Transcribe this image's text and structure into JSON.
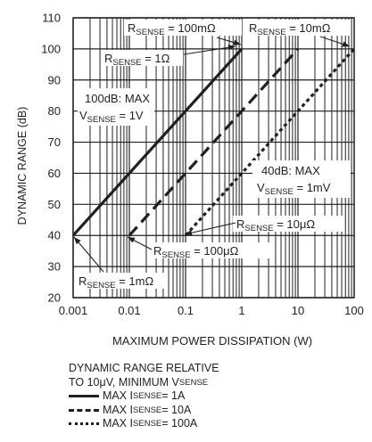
{
  "chart_data": {
    "type": "line",
    "title": "",
    "xlabel": "MAXIMUM POWER DISSIPATION (W)",
    "ylabel": "DYNAMIC RANGE (dB)",
    "xscale": "log",
    "xlim": [
      0.001,
      100
    ],
    "ylim": [
      20,
      110
    ],
    "xticks": [
      "0.001",
      "0.01",
      "0.1",
      "1",
      "10",
      "100"
    ],
    "yticks": [
      "20",
      "30",
      "40",
      "50",
      "60",
      "70",
      "80",
      "90",
      "100",
      "110"
    ],
    "grid": true,
    "series": [
      {
        "name": "MAX ISENSE = 1A",
        "style": "solid",
        "x": [
          0.001,
          1
        ],
        "y": [
          40,
          100
        ]
      },
      {
        "name": "MAX ISENSE = 10A",
        "style": "dash",
        "x": [
          0.01,
          10
        ],
        "y": [
          40,
          100
        ]
      },
      {
        "name": "MAX ISENSE = 100A",
        "style": "dot",
        "x": [
          0.1,
          100
        ],
        "y": [
          40,
          100
        ]
      }
    ],
    "annotations": [
      {
        "id": "r1m",
        "base": "R",
        "sub": "SENSE",
        "rest": " = 1mΩ"
      },
      {
        "id": "r100u",
        "base": "R",
        "sub": "SENSE",
        "rest": " = 100μΩ"
      },
      {
        "id": "r10u",
        "base": "R",
        "sub": "SENSE",
        "rest": " = 10μΩ"
      },
      {
        "id": "r1",
        "base": "R",
        "sub": "SENSE",
        "rest": " = 1Ω"
      },
      {
        "id": "r100m",
        "base": "R",
        "sub": "SENSE",
        "rest": " = 100mΩ"
      },
      {
        "id": "r10m",
        "base": "R",
        "sub": "SENSE",
        "rest": " = 10mΩ"
      },
      {
        "id": "max100",
        "line1": "100dB: MAX",
        "line2_base": "V",
        "line2_sub": "SENSE",
        "line2_rest": " = 1V"
      },
      {
        "id": "max40",
        "line1": "40dB: MAX",
        "line2_base": "V",
        "line2_sub": "SENSE",
        "line2_rest": " = 1mV"
      }
    ]
  },
  "legend": {
    "title_line1": "DYNAMIC RANGE RELATIVE",
    "title_line2_prefix": "TO 10μV, MINIMUM V",
    "title_line2_sub": "SENSE",
    "items": [
      {
        "prefix": "MAX I",
        "sub": "SENSE",
        "suffix": " = 1A"
      },
      {
        "prefix": "MAX I",
        "sub": "SENSE",
        "suffix": " = 10A"
      },
      {
        "prefix": "MAX I",
        "sub": "SENSE",
        "suffix": " = 100A"
      }
    ]
  }
}
